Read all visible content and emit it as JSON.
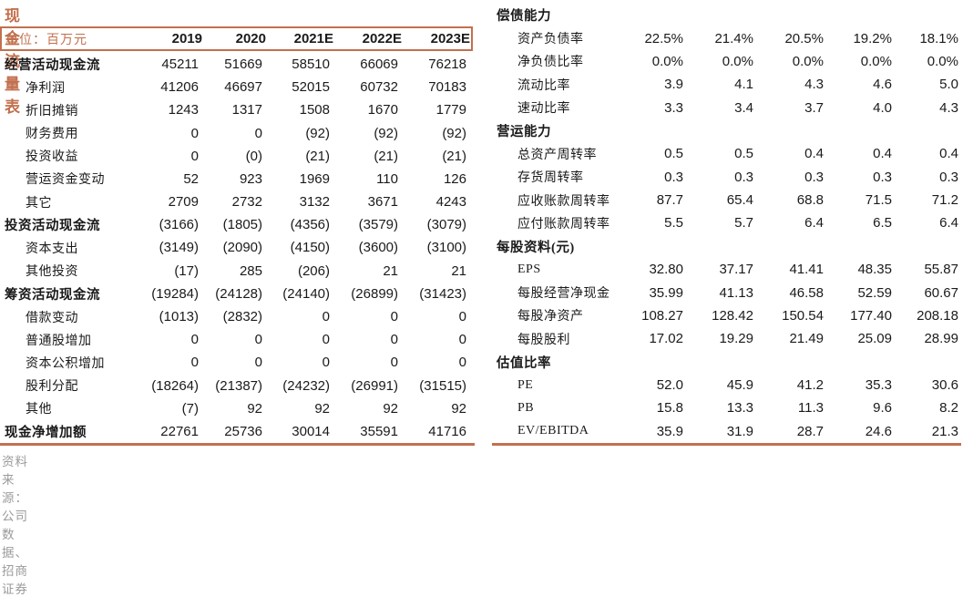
{
  "left_table": {
    "title": "现金流量表",
    "unit_label": "单位：百万元",
    "years": [
      "2019",
      "2020",
      "2021E",
      "2022E",
      "2023E"
    ],
    "rows": [
      {
        "label": "经营活动现金流",
        "bold": true,
        "indent": false,
        "values": [
          "45211",
          "51669",
          "58510",
          "66069",
          "76218"
        ]
      },
      {
        "label": "净利润",
        "bold": false,
        "indent": true,
        "values": [
          "41206",
          "46697",
          "52015",
          "60732",
          "70183"
        ]
      },
      {
        "label": "折旧摊销",
        "bold": false,
        "indent": true,
        "values": [
          "1243",
          "1317",
          "1508",
          "1670",
          "1779"
        ]
      },
      {
        "label": "财务费用",
        "bold": false,
        "indent": true,
        "values": [
          "0",
          "0",
          "(92)",
          "(92)",
          "(92)"
        ]
      },
      {
        "label": "投资收益",
        "bold": false,
        "indent": true,
        "values": [
          "0",
          "(0)",
          "(21)",
          "(21)",
          "(21)"
        ]
      },
      {
        "label": "营运资金变动",
        "bold": false,
        "indent": true,
        "values": [
          "52",
          "923",
          "1969",
          "110",
          "126"
        ]
      },
      {
        "label": "其它",
        "bold": false,
        "indent": true,
        "values": [
          "2709",
          "2732",
          "3132",
          "3671",
          "4243"
        ]
      },
      {
        "label": "投资活动现金流",
        "bold": true,
        "indent": false,
        "values": [
          "(3166)",
          "(1805)",
          "(4356)",
          "(3579)",
          "(3079)"
        ]
      },
      {
        "label": "资本支出",
        "bold": false,
        "indent": true,
        "values": [
          "(3149)",
          "(2090)",
          "(4150)",
          "(3600)",
          "(3100)"
        ]
      },
      {
        "label": "其他投资",
        "bold": false,
        "indent": true,
        "values": [
          "(17)",
          "285",
          "(206)",
          "21",
          "21"
        ]
      },
      {
        "label": "筹资活动现金流",
        "bold": true,
        "indent": false,
        "values": [
          "(19284)",
          "(24128)",
          "(24140)",
          "(26899)",
          "(31423)"
        ]
      },
      {
        "label": "借款变动",
        "bold": false,
        "indent": true,
        "values": [
          "(1013)",
          "(2832)",
          "0",
          "0",
          "0"
        ]
      },
      {
        "label": "普通股增加",
        "bold": false,
        "indent": true,
        "values": [
          "0",
          "0",
          "0",
          "0",
          "0"
        ]
      },
      {
        "label": "资本公积增加",
        "bold": false,
        "indent": true,
        "values": [
          "0",
          "0",
          "0",
          "0",
          "0"
        ]
      },
      {
        "label": "股利分配",
        "bold": false,
        "indent": true,
        "values": [
          "(18264)",
          "(21387)",
          "(24232)",
          "(26991)",
          "(31515)"
        ]
      },
      {
        "label": "其他",
        "bold": false,
        "indent": true,
        "values": [
          "(7)",
          "92",
          "92",
          "92",
          "92"
        ]
      },
      {
        "label": "现金净增加额",
        "bold": true,
        "indent": false,
        "values": [
          "22761",
          "25736",
          "30014",
          "35591",
          "41716"
        ]
      }
    ],
    "source": "资料来源：公司数据、招商证券"
  },
  "right_table": {
    "rows": [
      {
        "label": "偿债能力",
        "bold": true,
        "indent": false,
        "values": [
          "",
          "",
          "",
          "",
          ""
        ]
      },
      {
        "label": "资产负债率",
        "bold": false,
        "indent": true,
        "values": [
          "22.5%",
          "21.4%",
          "20.5%",
          "19.2%",
          "18.1%"
        ]
      },
      {
        "label": "净负债比率",
        "bold": false,
        "indent": true,
        "values": [
          "0.0%",
          "0.0%",
          "0.0%",
          "0.0%",
          "0.0%"
        ]
      },
      {
        "label": "流动比率",
        "bold": false,
        "indent": true,
        "values": [
          "3.9",
          "4.1",
          "4.3",
          "4.6",
          "5.0"
        ]
      },
      {
        "label": "速动比率",
        "bold": false,
        "indent": true,
        "values": [
          "3.3",
          "3.4",
          "3.7",
          "4.0",
          "4.3"
        ]
      },
      {
        "label": "营运能力",
        "bold": true,
        "indent": false,
        "values": [
          "",
          "",
          "",
          "",
          ""
        ]
      },
      {
        "label": "总资产周转率",
        "bold": false,
        "indent": true,
        "values": [
          "0.5",
          "0.5",
          "0.4",
          "0.4",
          "0.4"
        ]
      },
      {
        "label": "存货周转率",
        "bold": false,
        "indent": true,
        "values": [
          "0.3",
          "0.3",
          "0.3",
          "0.3",
          "0.3"
        ]
      },
      {
        "label": "应收账款周转率",
        "bold": false,
        "indent": true,
        "values": [
          "87.7",
          "65.4",
          "68.8",
          "71.5",
          "71.2"
        ]
      },
      {
        "label": "应付账款周转率",
        "bold": false,
        "indent": true,
        "values": [
          "5.5",
          "5.7",
          "6.4",
          "6.5",
          "6.4"
        ]
      },
      {
        "label": "每股资料(元)",
        "bold": true,
        "indent": false,
        "values": [
          "",
          "",
          "",
          "",
          ""
        ]
      },
      {
        "label": "EPS",
        "bold": false,
        "indent": true,
        "values": [
          "32.80",
          "37.17",
          "41.41",
          "48.35",
          "55.87"
        ]
      },
      {
        "label": "每股经营净现金",
        "bold": false,
        "indent": true,
        "values": [
          "35.99",
          "41.13",
          "46.58",
          "52.59",
          "60.67"
        ]
      },
      {
        "label": "每股净资产",
        "bold": false,
        "indent": true,
        "values": [
          "108.27",
          "128.42",
          "150.54",
          "177.40",
          "208.18"
        ]
      },
      {
        "label": "每股股利",
        "bold": false,
        "indent": true,
        "values": [
          "17.02",
          "19.29",
          "21.49",
          "25.09",
          "28.99"
        ]
      },
      {
        "label": "估值比率",
        "bold": true,
        "indent": false,
        "values": [
          "",
          "",
          "",
          "",
          ""
        ]
      },
      {
        "label": "PE",
        "bold": false,
        "indent": true,
        "values": [
          "52.0",
          "45.9",
          "41.2",
          "35.3",
          "30.6"
        ]
      },
      {
        "label": "PB",
        "bold": false,
        "indent": true,
        "values": [
          "15.8",
          "13.3",
          "11.3",
          "9.6",
          "8.2"
        ]
      },
      {
        "label": "EV/EBITDA",
        "bold": false,
        "indent": true,
        "values": [
          "35.9",
          "31.9",
          "28.7",
          "24.6",
          "21.3"
        ]
      }
    ]
  },
  "colors": {
    "accent": "#c2704e",
    "text": "#1a1a1a",
    "source_text": "#9b9b9b"
  }
}
